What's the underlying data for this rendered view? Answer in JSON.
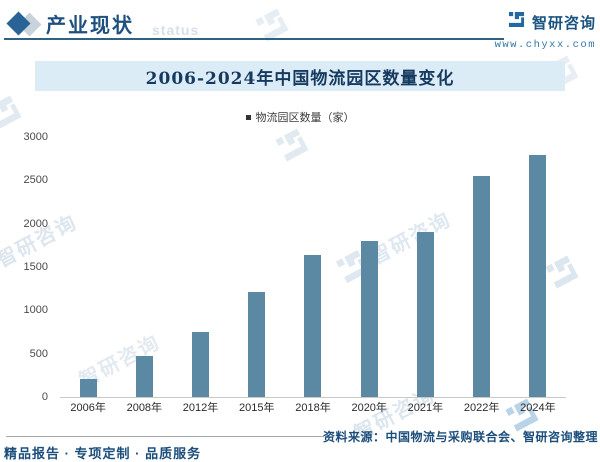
{
  "header": {
    "title": "产业现状",
    "status_watermark": "status",
    "brand": {
      "name": "智研咨询",
      "website": "www.chyxx.com"
    }
  },
  "chart": {
    "title": "2006-2024年中国物流园区数量变化",
    "legend": "物流园区数量（家）"
  },
  "chart_data": {
    "type": "bar",
    "title": "2006-2024年中国物流园区数量变化",
    "series_name": "物流园区数量（家）",
    "categories": [
      "2006年",
      "2008年",
      "2012年",
      "2015年",
      "2018年",
      "2020年",
      "2021年",
      "2022年",
      "2024年"
    ],
    "values": [
      207,
      475,
      754,
      1210,
      1638,
      1800,
      1906,
      2553,
      2790
    ],
    "xlabel": "",
    "ylabel": "",
    "ylim": [
      0,
      3000
    ],
    "yticks": [
      0,
      500,
      1000,
      1500,
      2000,
      2500,
      3000
    ],
    "bar_color": "#5b89a4",
    "legend_position": "top",
    "grid": false
  },
  "footer": {
    "source": "资料来源：中国物流与采购联合会、智研咨询整理",
    "services": "精品报告 · 专项定制 · 品质服务"
  },
  "colors": {
    "accent_dark_blue": "#1d507f",
    "banner_bg": "#dcecf7",
    "bar": "#5b89a4",
    "header_rule": "#2f6280",
    "footer_text": "#1c4e7c"
  }
}
